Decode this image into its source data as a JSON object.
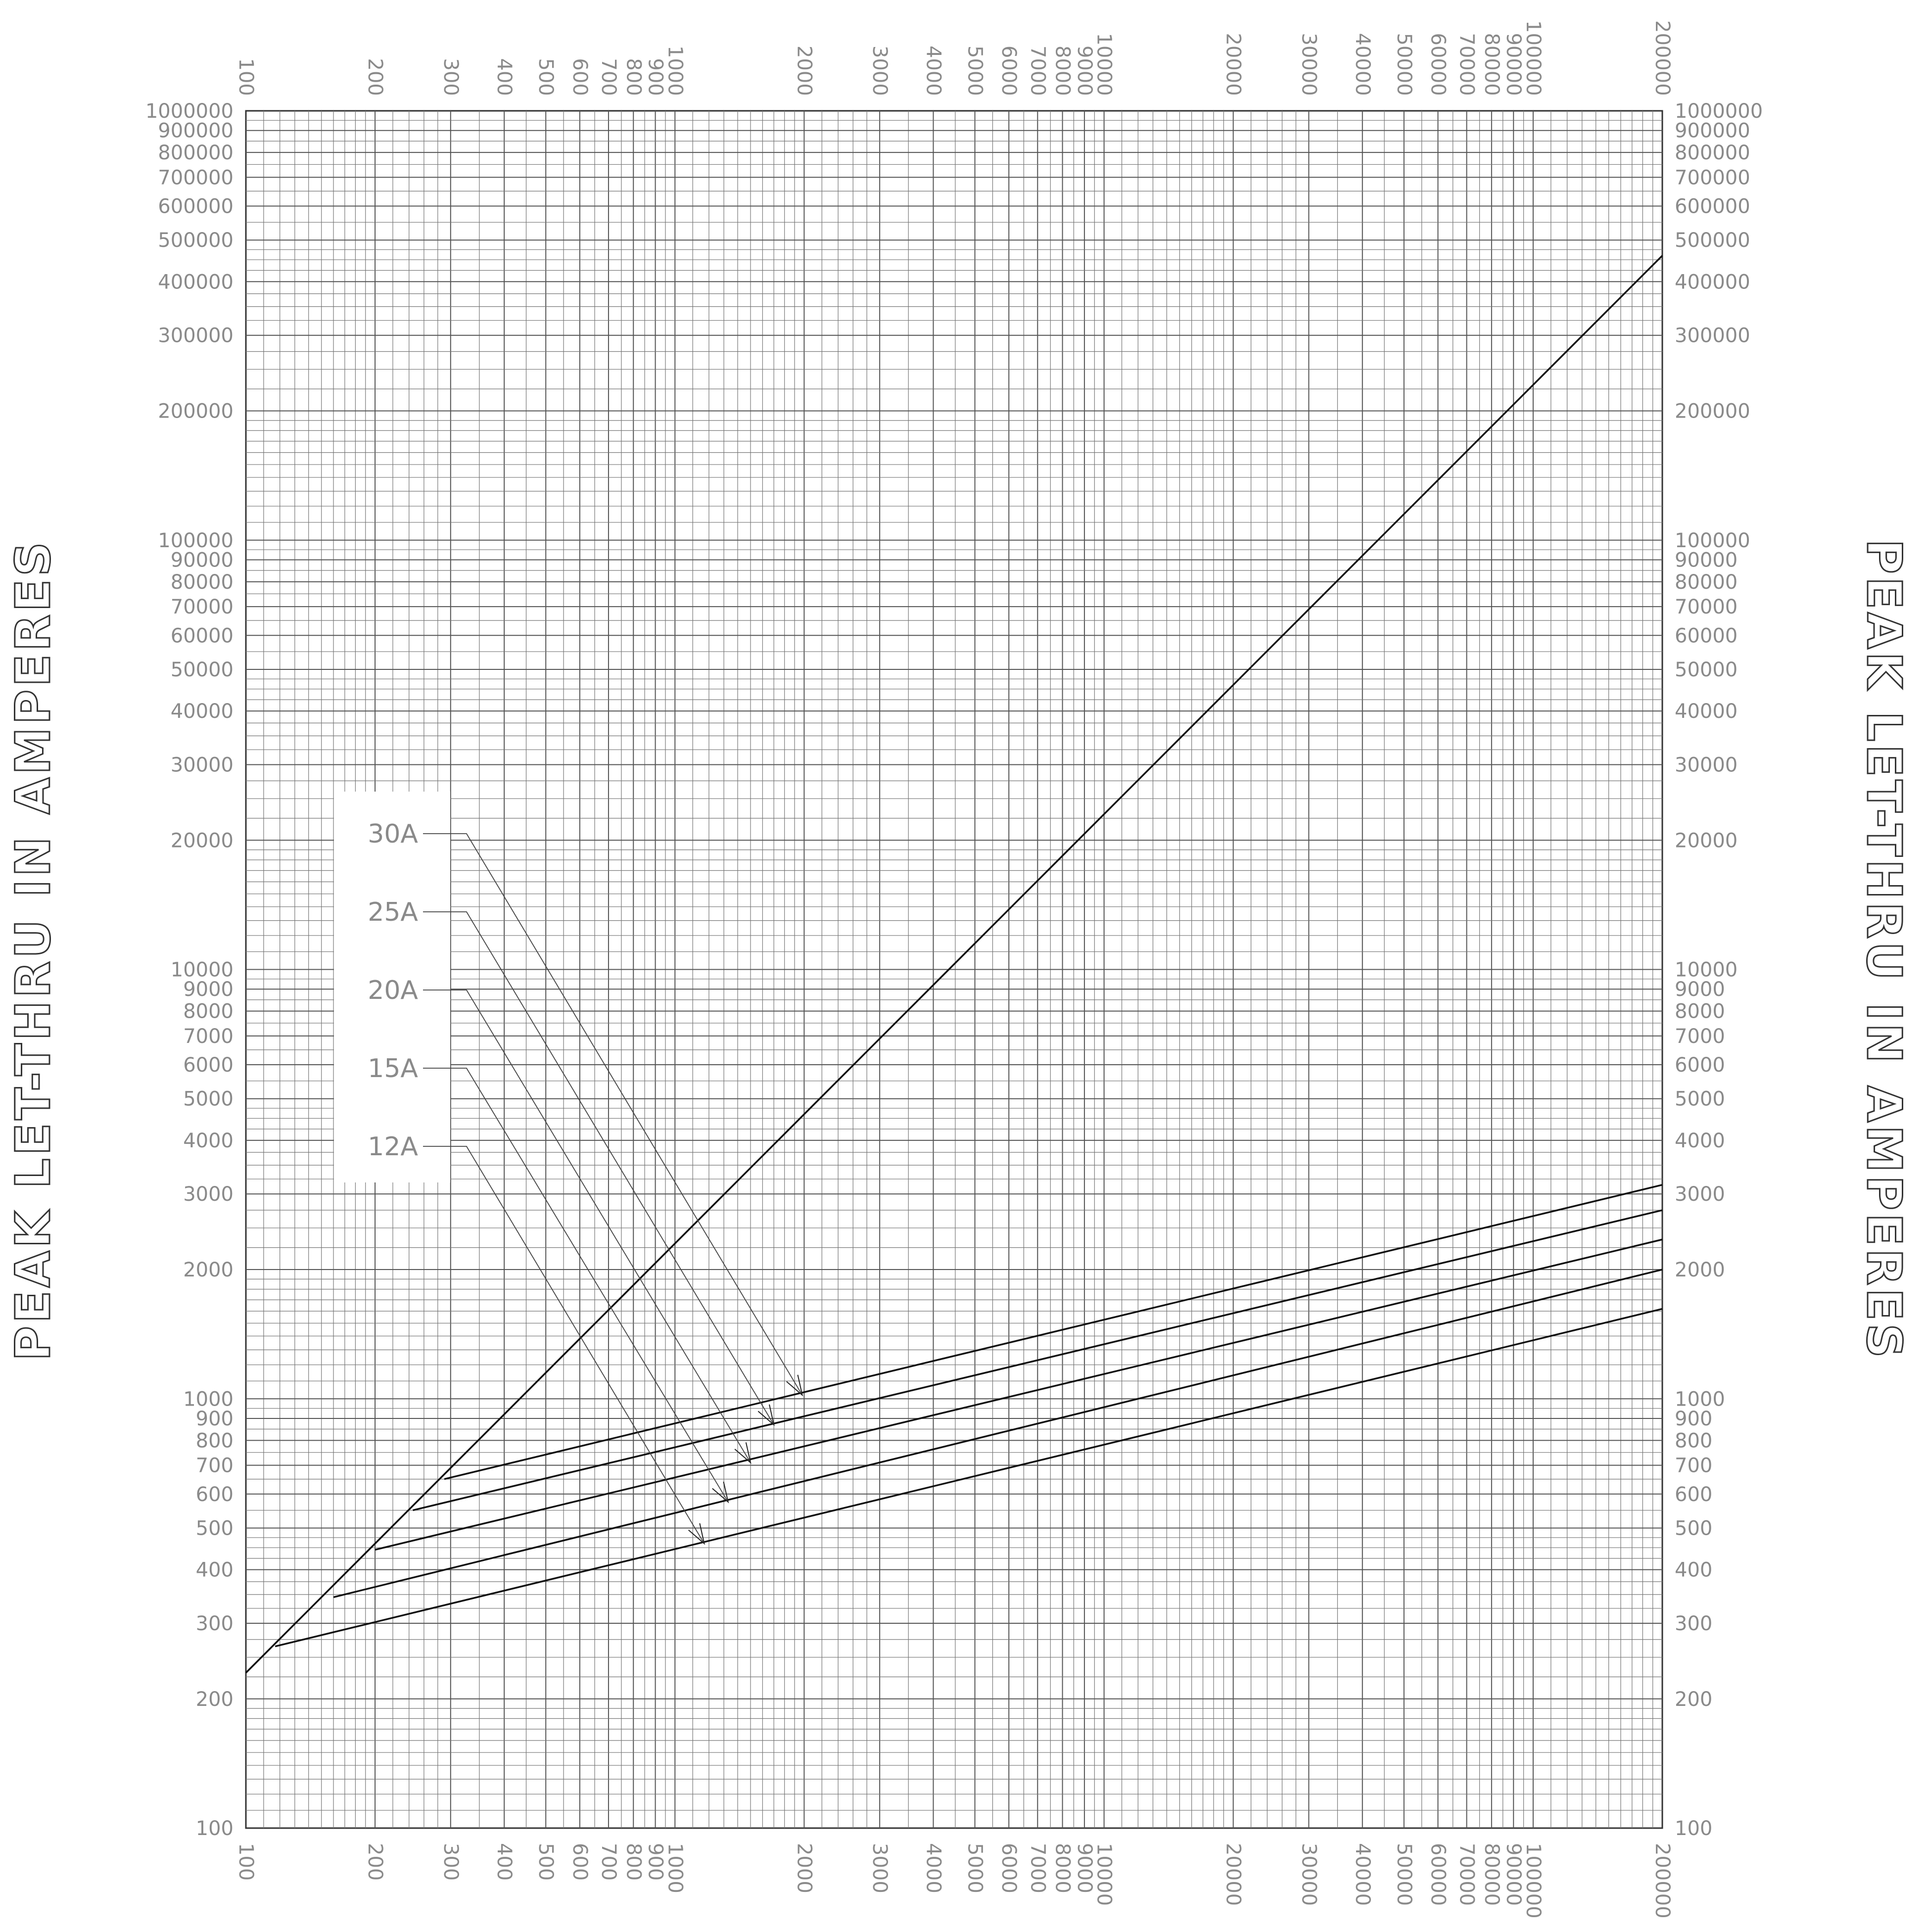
{
  "chart_data": {
    "type": "line",
    "title": "",
    "xlabel": "",
    "ylabel": "PEAK LET-THRU IN AMPERES",
    "x_scale": "log",
    "y_scale": "log",
    "xlim": [
      100,
      200000
    ],
    "ylim": [
      100,
      1000000
    ],
    "grid": true,
    "x_tick_labels": [
      {
        "value": 100,
        "label": "100"
      },
      {
        "value": 200,
        "label": "200"
      },
      {
        "value": 300,
        "label": "300"
      },
      {
        "value": 400,
        "label": "400"
      },
      {
        "value": 500,
        "label": "500"
      },
      {
        "value": 600,
        "label": "600"
      },
      {
        "value": 700,
        "label": "700"
      },
      {
        "value": 800,
        "label": "800"
      },
      {
        "value": 900,
        "label": "900"
      },
      {
        "value": 1000,
        "label": "1000"
      },
      {
        "value": 2000,
        "label": "2000"
      },
      {
        "value": 3000,
        "label": "3000"
      },
      {
        "value": 4000,
        "label": "4000"
      },
      {
        "value": 5000,
        "label": "5000"
      },
      {
        "value": 6000,
        "label": "6000"
      },
      {
        "value": 7000,
        "label": "7000"
      },
      {
        "value": 8000,
        "label": "8000"
      },
      {
        "value": 9000,
        "label": "9000"
      },
      {
        "value": 10000,
        "label": "10000"
      },
      {
        "value": 20000,
        "label": "20000"
      },
      {
        "value": 30000,
        "label": "30000"
      },
      {
        "value": 40000,
        "label": "40000"
      },
      {
        "value": 50000,
        "label": "50000"
      },
      {
        "value": 60000,
        "label": "60000"
      },
      {
        "value": 70000,
        "label": "70000"
      },
      {
        "value": 80000,
        "label": "80000"
      },
      {
        "value": 90000,
        "label": "90000"
      },
      {
        "value": 100000,
        "label": "100000"
      },
      {
        "value": 200000,
        "label": "200000"
      }
    ],
    "y_tick_labels": [
      {
        "value": 100,
        "label": "100"
      },
      {
        "value": 200,
        "label": "200"
      },
      {
        "value": 300,
        "label": "300"
      },
      {
        "value": 400,
        "label": "400"
      },
      {
        "value": 500,
        "label": "500"
      },
      {
        "value": 600,
        "label": "600"
      },
      {
        "value": 700,
        "label": "700"
      },
      {
        "value": 800,
        "label": "800"
      },
      {
        "value": 900,
        "label": "900"
      },
      {
        "value": 1000,
        "label": "1000"
      },
      {
        "value": 2000,
        "label": "2000"
      },
      {
        "value": 3000,
        "label": "3000"
      },
      {
        "value": 4000,
        "label": "4000"
      },
      {
        "value": 5000,
        "label": "5000"
      },
      {
        "value": 6000,
        "label": "6000"
      },
      {
        "value": 7000,
        "label": "7000"
      },
      {
        "value": 8000,
        "label": "8000"
      },
      {
        "value": 9000,
        "label": "9000"
      },
      {
        "value": 10000,
        "label": "10000"
      },
      {
        "value": 20000,
        "label": "20000"
      },
      {
        "value": 30000,
        "label": "30000"
      },
      {
        "value": 40000,
        "label": "40000"
      },
      {
        "value": 50000,
        "label": "50000"
      },
      {
        "value": 60000,
        "label": "60000"
      },
      {
        "value": 70000,
        "label": "70000"
      },
      {
        "value": 80000,
        "label": "80000"
      },
      {
        "value": 90000,
        "label": "90000"
      },
      {
        "value": 100000,
        "label": "100000"
      },
      {
        "value": 200000,
        "label": "200000"
      },
      {
        "value": 300000,
        "label": "300000"
      },
      {
        "value": 400000,
        "label": "400000"
      },
      {
        "value": 500000,
        "label": "500000"
      },
      {
        "value": 600000,
        "label": "600000"
      },
      {
        "value": 700000,
        "label": "700000"
      },
      {
        "value": 800000,
        "label": "800000"
      },
      {
        "value": 900000,
        "label": "900000"
      },
      {
        "value": 1000000,
        "label": "1000000"
      }
    ],
    "reference_line": {
      "points": [
        [
          100,
          230
        ],
        [
          200000,
          460000
        ]
      ]
    },
    "series": [
      {
        "name": "30A",
        "points": [
          [
            290,
            650
          ],
          [
            200000,
            3150
          ]
        ],
        "label_points_to": [
          1980,
          1020
        ]
      },
      {
        "name": "25A",
        "points": [
          [
            245,
            550
          ],
          [
            200000,
            2750
          ]
        ],
        "label_points_to": [
          1700,
          870
        ]
      },
      {
        "name": "20A",
        "points": [
          [
            200,
            445
          ],
          [
            200000,
            2350
          ]
        ],
        "label_points_to": [
          1500,
          710
        ]
      },
      {
        "name": "15A",
        "points": [
          [
            160,
            345
          ],
          [
            200000,
            2000
          ]
        ],
        "label_points_to": [
          1330,
          575
        ]
      },
      {
        "name": "12A",
        "points": [
          [
            117,
            265
          ],
          [
            200000,
            1620
          ]
        ],
        "label_points_to": [
          1170,
          460
        ]
      }
    ]
  }
}
